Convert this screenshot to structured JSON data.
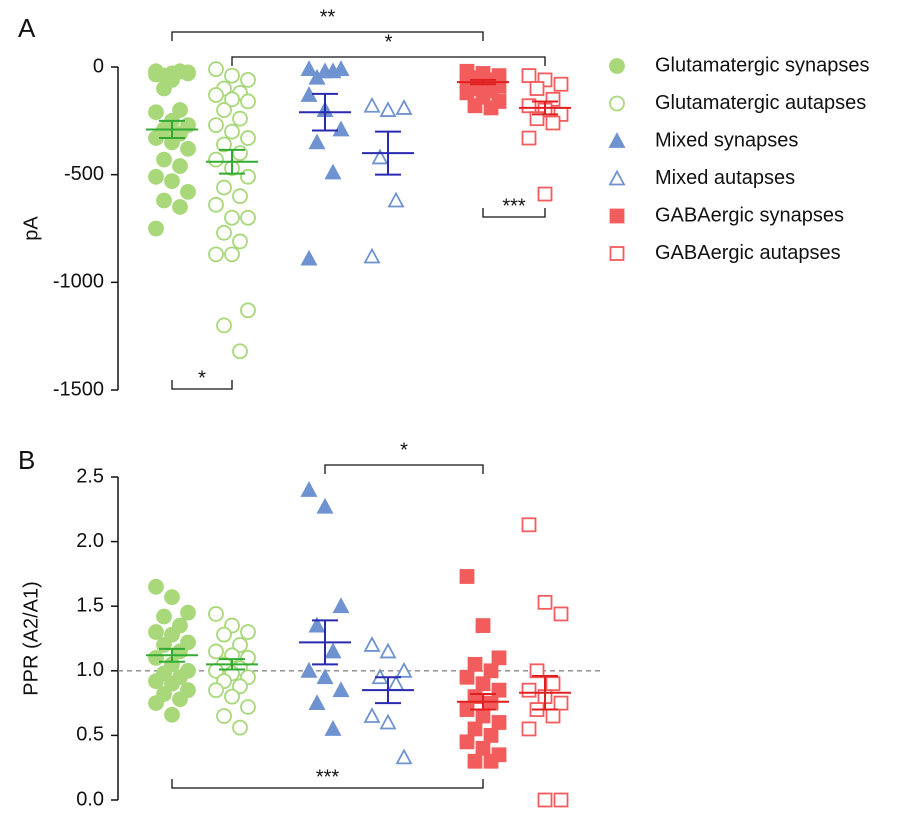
{
  "chart_data": [
    {
      "type": "strip",
      "panel": "A",
      "ylabel": "pA",
      "ylim": [
        -1500,
        0
      ],
      "yticks": [
        0,
        -500,
        -1000,
        -1500
      ],
      "annotations": [
        "**",
        "*",
        "*",
        "***"
      ],
      "series": [
        {
          "name": "Glutamatergic synapses",
          "color": "#a8d87a",
          "mean_color": "#33aa33",
          "marker": "circle",
          "filled": true,
          "values": [
            -20,
            -30,
            -25,
            -40,
            -20,
            -35,
            -60,
            -30,
            -100,
            -200,
            -210,
            -250,
            -270,
            -290,
            -310,
            -330,
            -350,
            -380,
            -430,
            -460,
            -510,
            -530,
            -580,
            -620,
            -650,
            -750
          ],
          "mean": -290,
          "sem": 40
        },
        {
          "name": "Glutamatergic autapses",
          "color": "#a8d87a",
          "mean_color": "#33aa33",
          "marker": "circle",
          "filled": false,
          "values": [
            -10,
            -40,
            -60,
            -100,
            -120,
            -130,
            -150,
            -160,
            -200,
            -240,
            -270,
            -300,
            -330,
            -360,
            -400,
            -430,
            -470,
            -510,
            -560,
            -600,
            -640,
            -700,
            -700,
            -770,
            -810,
            -870,
            -870,
            -1130,
            -1200,
            -1320
          ],
          "mean": -440,
          "sem": 55
        },
        {
          "name": "Mixed synapses",
          "color": "#6f93d0",
          "mean_color": "#2a2ab0",
          "marker": "triangle",
          "filled": true,
          "values": [
            -10,
            -20,
            -10,
            -50,
            -20,
            -130,
            -200,
            -290,
            -350,
            -490,
            -890
          ],
          "mean": -210,
          "sem": 85
        },
        {
          "name": "Mixed autapses",
          "color": "#6f93d0",
          "mean_color": "#2a2ab0",
          "marker": "triangle",
          "filled": false,
          "values": [
            -180,
            -200,
            -190,
            -420,
            -620,
            -880
          ],
          "mean": -400,
          "sem": 100
        },
        {
          "name": "GABAergic synapses",
          "color": "#f25c5c",
          "mean_color": "#e02020",
          "marker": "square",
          "filled": true,
          "values": [
            -20,
            -30,
            -40,
            -50,
            -60,
            -70,
            -80,
            -90,
            -100,
            -110,
            -120,
            -140,
            -160,
            -180,
            -190
          ],
          "mean": -70,
          "sem": 10
        },
        {
          "name": "GABAergic autapses",
          "color": "#f25c5c",
          "mean_color": "#e02020",
          "marker": "square",
          "filled": false,
          "values": [
            -40,
            -60,
            -80,
            -100,
            -150,
            -180,
            -200,
            -220,
            -240,
            -260,
            -330,
            -590
          ],
          "mean": -190,
          "sem": 30
        }
      ]
    },
    {
      "type": "strip",
      "panel": "B",
      "ylabel": "PPR (A2/A1)",
      "ylim": [
        0,
        2.5
      ],
      "yticks": [
        {
          "value": 0,
          "label": "0.0"
        },
        0.5,
        {
          "value": 1,
          "label": "1.0"
        },
        1.5,
        {
          "value": 2,
          "label": "2.0"
        },
        2.5
      ],
      "hline": 1,
      "annotations": [
        "*",
        "***"
      ],
      "series": [
        {
          "color": "#a8d87a",
          "mean_color": "#33aa33",
          "marker": "circle",
          "filled": true,
          "values": [
            1.65,
            1.57,
            1.45,
            1.42,
            1.35,
            1.3,
            1.28,
            1.22,
            1.2,
            1.15,
            1.1,
            1.05,
            1.0,
            0.98,
            0.95,
            0.92,
            0.9,
            0.85,
            0.82,
            0.78,
            0.75,
            0.66
          ],
          "mean": 1.12,
          "sem": 0.05
        },
        {
          "color": "#a8d87a",
          "mean_color": "#33aa33",
          "marker": "circle",
          "filled": false,
          "values": [
            1.44,
            1.35,
            1.3,
            1.28,
            1.2,
            1.15,
            1.12,
            1.1,
            1.05,
            1.02,
            1.0,
            0.98,
            0.95,
            0.92,
            0.88,
            0.85,
            0.8,
            0.72,
            0.65,
            0.56
          ],
          "mean": 1.05,
          "sem": 0.04
        },
        {
          "color": "#6f93d0",
          "mean_color": "#2a2ab0",
          "marker": "triangle",
          "filled": true,
          "values": [
            2.4,
            2.27,
            1.5,
            1.35,
            1.15,
            1.0,
            0.95,
            0.85,
            0.75,
            0.55
          ],
          "mean": 1.22,
          "sem": 0.17
        },
        {
          "color": "#6f93d0",
          "mean_color": "#2a2ab0",
          "marker": "triangle",
          "filled": false,
          "values": [
            1.2,
            1.15,
            1.0,
            0.95,
            0.9,
            0.65,
            0.6,
            0.33
          ],
          "mean": 0.85,
          "sem": 0.1
        },
        {
          "color": "#f25c5c",
          "mean_color": "#e02020",
          "marker": "square",
          "filled": true,
          "values": [
            1.73,
            1.35,
            1.1,
            1.05,
            1.0,
            0.95,
            0.9,
            0.85,
            0.8,
            0.75,
            0.7,
            0.65,
            0.6,
            0.55,
            0.5,
            0.45,
            0.4,
            0.35,
            0.3,
            0.3
          ],
          "mean": 0.76,
          "sem": 0.06
        },
        {
          "color": "#f25c5c",
          "mean_color": "#e02020",
          "marker": "square",
          "filled": false,
          "values": [
            2.13,
            1.53,
            1.44,
            1.0,
            0.9,
            0.85,
            0.8,
            0.75,
            0.7,
            0.65,
            0.55,
            0.0,
            0.0
          ],
          "mean": 0.83,
          "sem": 0.13
        }
      ]
    }
  ]
}
